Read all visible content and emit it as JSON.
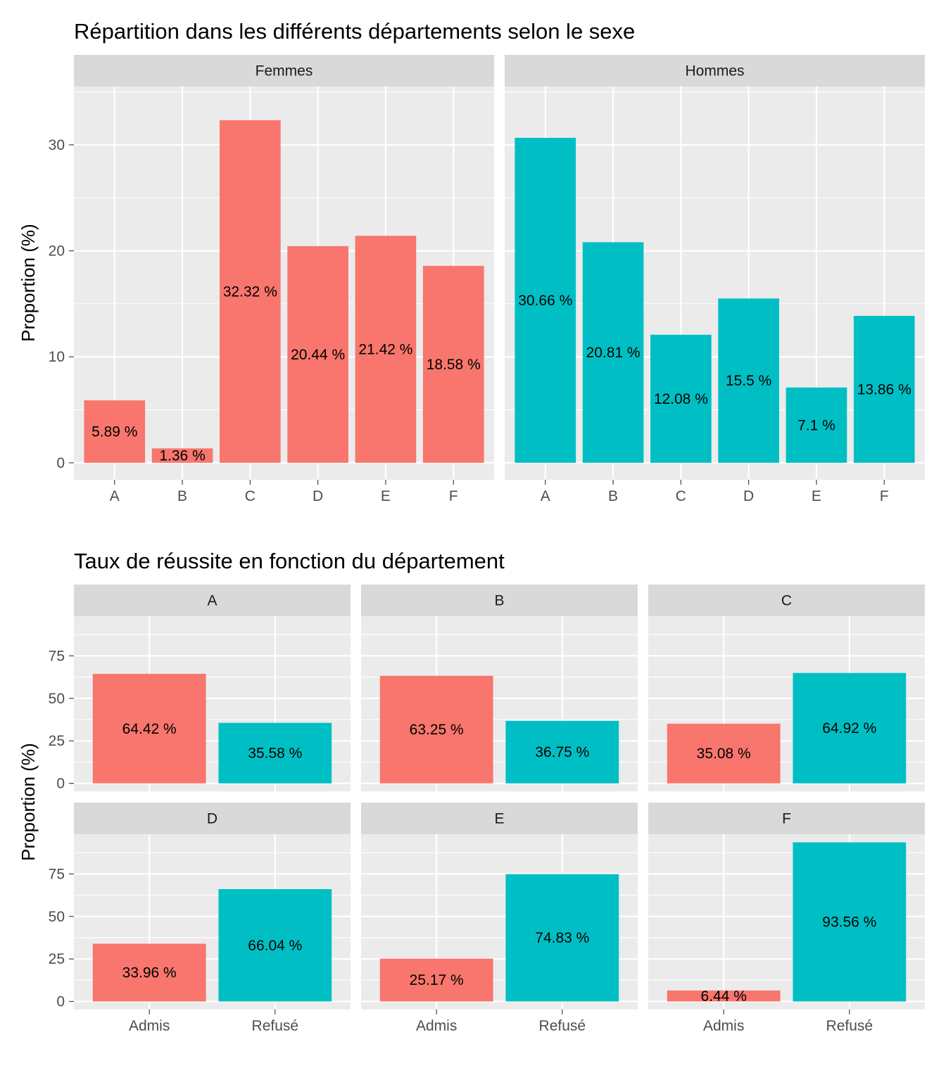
{
  "colors": {
    "panel_background": "#ebebeb",
    "strip_background": "#d9d9d9",
    "gridline": "#ffffff",
    "tick_mark": "#333333",
    "female_red": "#f8766d",
    "male_teal": "#00bfc4"
  },
  "chart_data": [
    {
      "type": "bar",
      "title": "Répartition dans les différents départements selon le sexe",
      "ylabel": "Proportion (%)",
      "xlabel": "",
      "categories": [
        "A",
        "B",
        "C",
        "D",
        "E",
        "F"
      ],
      "ylim": [
        -1.6,
        35.5
      ],
      "yticks": [
        0,
        10,
        20,
        30
      ],
      "ytick_labels": [
        "0",
        "10",
        "20",
        "30"
      ],
      "grid": true,
      "legend": "none",
      "facets": [
        {
          "name": "Femmes",
          "color": "#f8766d",
          "values": [
            5.89,
            1.36,
            32.32,
            20.44,
            21.42,
            18.58
          ],
          "labels": [
            "5.89 %",
            "1.36 %",
            "32.32 %",
            "20.44 %",
            "21.42 %",
            "18.58 %"
          ]
        },
        {
          "name": "Hommes",
          "color": "#00bfc4",
          "values": [
            30.66,
            20.81,
            12.08,
            15.5,
            7.1,
            13.86
          ],
          "labels": [
            "30.66 %",
            "20.81 %",
            "12.08 %",
            "15.5 %",
            "7.1 %",
            "13.86 %"
          ]
        }
      ]
    },
    {
      "type": "bar",
      "title": "Taux de réussite en fonction du département",
      "ylabel": "Proportion (%)",
      "xlabel": "",
      "categories": [
        "Admis",
        "Refusé"
      ],
      "category_colors": [
        "#f8766d",
        "#00bfc4"
      ],
      "ylim": [
        -4.7,
        98.3
      ],
      "yticks": [
        0,
        25,
        50,
        75
      ],
      "ytick_labels": [
        "0",
        "25",
        "50",
        "75"
      ],
      "grid": true,
      "legend": "none",
      "facets": [
        {
          "name": "A",
          "values": [
            64.42,
            35.58
          ],
          "labels": [
            "64.42 %",
            "35.58 %"
          ]
        },
        {
          "name": "B",
          "values": [
            63.25,
            36.75
          ],
          "labels": [
            "63.25 %",
            "36.75 %"
          ]
        },
        {
          "name": "C",
          "values": [
            35.08,
            64.92
          ],
          "labels": [
            "35.08 %",
            "64.92 %"
          ]
        },
        {
          "name": "D",
          "values": [
            33.96,
            66.04
          ],
          "labels": [
            "33.96 %",
            "66.04 %"
          ]
        },
        {
          "name": "E",
          "values": [
            25.17,
            74.83
          ],
          "labels": [
            "25.17 %",
            "74.83 %"
          ]
        },
        {
          "name": "F",
          "values": [
            6.44,
            93.56
          ],
          "labels": [
            "6.44 %",
            "93.56 %"
          ]
        }
      ]
    }
  ]
}
